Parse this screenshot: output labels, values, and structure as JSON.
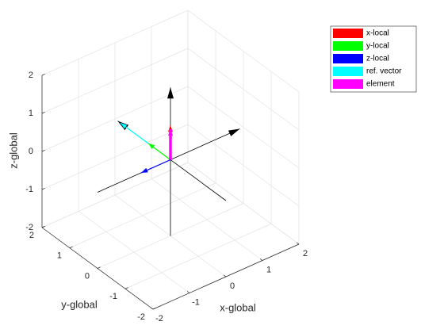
{
  "chart_data": {
    "type": "line3d",
    "xlabel": "x-global",
    "ylabel": "y-global",
    "zlabel": "z-global",
    "xlim": [
      -2,
      2
    ],
    "ylim": [
      -2,
      2
    ],
    "zlim": [
      -2,
      2
    ],
    "xticks": [
      -2,
      -1,
      0,
      1,
      2
    ],
    "yticks": [
      -2,
      -1,
      0,
      1,
      2
    ],
    "zticks": [
      -2,
      -1,
      0,
      1,
      2
    ],
    "grid": true,
    "legend_position": "northeast outside",
    "series": [
      {
        "color": "#000000",
        "x": [
          -2,
          1.9
        ],
        "y": [
          0,
          0
        ],
        "z": [
          0,
          0
        ]
      },
      {
        "color": "#000000",
        "x": [
          0,
          0
        ],
        "y": [
          -2,
          1.9
        ],
        "z": [
          0,
          0
        ]
      },
      {
        "color": "#000000",
        "x": [
          0,
          0
        ],
        "y": [
          0,
          0
        ],
        "z": [
          -2,
          1.9
        ]
      },
      {
        "name": "x-local",
        "color": "#ff0000",
        "x": [
          0,
          0
        ],
        "y": [
          0,
          0
        ],
        "z": [
          0,
          0.9
        ]
      },
      {
        "name": "y-local",
        "color": "#00ff00",
        "x": [
          0,
          0
        ],
        "y": [
          0,
          0.8
        ],
        "z": [
          0,
          0
        ]
      },
      {
        "name": "z-local",
        "color": "#0000ff",
        "x": [
          0,
          -0.8
        ],
        "y": [
          0,
          0
        ],
        "z": [
          0,
          0
        ]
      },
      {
        "name": "ref. vector",
        "color": "#00ffff",
        "x": [
          0,
          0
        ],
        "y": [
          0.8,
          1.8
        ],
        "z": [
          0,
          0
        ]
      },
      {
        "name": "element",
        "color": "#ff00ff",
        "x": [
          0,
          0
        ],
        "y": [
          0,
          0
        ],
        "z": [
          0,
          0.8
        ]
      }
    ]
  }
}
